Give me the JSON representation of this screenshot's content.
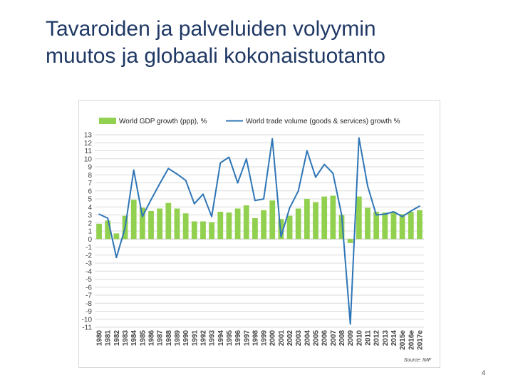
{
  "slide": {
    "title_line1": "Tavaroiden ja palveluiden volyymin",
    "title_line2": "muutos ja globaali kokonaistuotanto",
    "page_number": "4"
  },
  "chart_data": {
    "type": "bar",
    "title": "",
    "xlabel": "",
    "ylabel": "",
    "ylim": [
      -11,
      13
    ],
    "yticks": [
      13,
      12,
      11,
      10,
      9,
      8,
      7,
      6,
      5,
      4,
      3,
      2,
      1,
      0,
      -1,
      -2,
      -3,
      -4,
      -5,
      -6,
      -7,
      -8,
      -9,
      -10,
      -11
    ],
    "grid": true,
    "legend_position": "top",
    "source": "Source: IMF",
    "categories": [
      "1980",
      "1981",
      "1982",
      "1983",
      "1984",
      "1985",
      "1986",
      "1987",
      "1988",
      "1989",
      "1990",
      "1991",
      "1992",
      "1993",
      "1994",
      "1995",
      "1996",
      "1997",
      "1998",
      "1999",
      "2000",
      "2001",
      "2002",
      "2003",
      "2004",
      "2005",
      "2006",
      "2007",
      "2008",
      "2009",
      "2010",
      "2011",
      "2012",
      "2013",
      "2014",
      "2015e",
      "2016e",
      "2017e"
    ],
    "series": [
      {
        "name": "World GDP growth (ppp), %",
        "type": "bar",
        "color": "#92d050",
        "values": [
          1.9,
          2.3,
          0.7,
          2.9,
          4.9,
          3.9,
          3.5,
          3.8,
          4.5,
          3.8,
          3.2,
          2.2,
          2.2,
          2.1,
          3.4,
          3.3,
          3.8,
          4.2,
          2.6,
          3.6,
          4.8,
          2.5,
          2.9,
          3.8,
          5.0,
          4.6,
          5.3,
          5.4,
          3.0,
          -0.5,
          5.3,
          3.9,
          3.4,
          3.3,
          3.4,
          3.1,
          3.4,
          3.6
        ]
      },
      {
        "name": "World trade volume (goods & services) growth %",
        "type": "line",
        "color": "#2e75b6",
        "values": [
          3.1,
          2.6,
          -2.3,
          1.4,
          8.6,
          2.8,
          4.9,
          6.9,
          8.8,
          8.1,
          7.3,
          4.4,
          5.6,
          2.8,
          9.5,
          10.2,
          7.0,
          10.0,
          4.8,
          5.0,
          12.5,
          0.3,
          3.9,
          6.0,
          11.0,
          7.7,
          9.3,
          8.2,
          3.0,
          -10.6,
          12.6,
          6.6,
          3.0,
          3.1,
          3.4,
          2.8,
          3.5,
          4.1
        ]
      }
    ]
  }
}
